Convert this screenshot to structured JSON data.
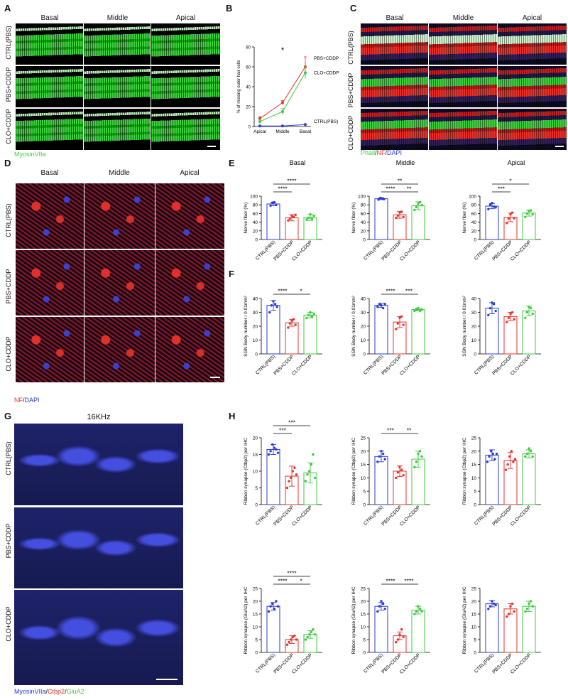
{
  "panels": {
    "A": {
      "letter": "A",
      "columns": [
        "Basal",
        "Middle",
        "Apical"
      ],
      "rows": [
        "CTRL(PBS)",
        "PBS+CDDP",
        "CLO+CDDP"
      ],
      "stain": "MyosinVIIa",
      "colors": {
        "stain": "#3fd13f"
      }
    },
    "B": {
      "letter": "B"
    },
    "C": {
      "letter": "C",
      "columns": [
        "Basal",
        "Middle",
        "Apical"
      ],
      "rows": [
        "CTRL(PBS)",
        "PBS+CDDP",
        "CLO+CDDP"
      ],
      "stain_parts": [
        "Phail",
        "/",
        "NF",
        "/",
        "DAPI"
      ],
      "colors": {
        "phail": "#3fd13f",
        "nf": "#e8322a",
        "dapi": "#2a3bd6"
      }
    },
    "D": {
      "letter": "D",
      "columns": [
        "Basal",
        "Middle",
        "Apical"
      ],
      "rows": [
        "CTRL(PBS)",
        "PBS+CDDP",
        "CLO+CDDP"
      ],
      "stain_parts": [
        "NF",
        "/",
        "DAPI"
      ]
    },
    "E": {
      "letter": "E"
    },
    "F": {
      "letter": "F"
    },
    "G": {
      "letter": "G",
      "title": "16KHz",
      "rows": [
        "CTRL(PBS)",
        "PBS+CDDP",
        "CLO+CDDP"
      ],
      "stain_parts": [
        "MyosinVIIa",
        "/",
        "Ctbp2",
        "/",
        "GluA2"
      ],
      "colors": {
        "myo": "#2a3bd6",
        "ctbp2": "#e8322a",
        "glua2": "#3fd13f"
      }
    },
    "H": {
      "letter": "H"
    }
  },
  "chart_data": [
    {
      "id": "B",
      "type": "line",
      "title": "",
      "xlabel": "",
      "ylabel": "% of missing outer hair cells",
      "categories": [
        "Apical",
        "Middle",
        "Basal"
      ],
      "ylim": [
        0,
        80
      ],
      "yticks": [
        0,
        20,
        40,
        60,
        80
      ],
      "series": [
        {
          "name": "PBS+CDDP",
          "color": "#e8322a",
          "values": [
            8,
            24,
            60
          ],
          "errors": [
            2,
            2,
            10
          ]
        },
        {
          "name": "CLO+CDDP",
          "color": "#3fc93f",
          "values": [
            5,
            15,
            54
          ],
          "errors": [
            2,
            3,
            6
          ]
        },
        {
          "name": "CTRL(PBS)",
          "color": "#2a3bd6",
          "values": [
            0.5,
            0.5,
            2
          ],
          "errors": [
            0.3,
            0.3,
            0.5
          ]
        }
      ],
      "annotations": [
        {
          "text": "*",
          "x": "Middle"
        }
      ]
    },
    {
      "id": "E-basal",
      "type": "bar",
      "title": "Basal",
      "ylabel": "Nerve fiber (%)",
      "categories": [
        "CTRL(PBS)",
        "PBS+CDDP",
        "CLO+CDDP"
      ],
      "ylim": [
        0,
        100
      ],
      "yticks": [
        0,
        20,
        40,
        60,
        80,
        100
      ],
      "values": [
        82,
        50,
        51
      ],
      "errors": [
        4,
        7,
        7
      ],
      "points": [
        [
          78,
          85,
          86,
          80
        ],
        [
          44,
          48,
          55,
          52,
          57
        ],
        [
          46,
          50,
          58,
          48,
          55
        ]
      ],
      "brackets": [
        {
          "from": 0,
          "to": 1,
          "text": "****",
          "level": 0
        },
        {
          "from": 0,
          "to": 2,
          "text": "****",
          "level": 1
        }
      ]
    },
    {
      "id": "E-middle",
      "type": "bar",
      "title": "Middle",
      "ylabel": "Nerve fiber (%)",
      "categories": [
        "CTRL(PBS)",
        "PBS+CDDP",
        "CLO+CDDP"
      ],
      "ylim": [
        0,
        100
      ],
      "yticks": [
        0,
        20,
        40,
        60,
        80,
        100
      ],
      "values": [
        94,
        57,
        78
      ],
      "errors": [
        2,
        8,
        9
      ],
      "points": [
        [
          92,
          96,
          95,
          93
        ],
        [
          50,
          55,
          62,
          64,
          52
        ],
        [
          68,
          75,
          83,
          86,
          79
        ]
      ],
      "brackets": [
        {
          "from": 0,
          "to": 1,
          "text": "****",
          "level": 0
        },
        {
          "from": 1,
          "to": 2,
          "text": "**",
          "level": 0
        },
        {
          "from": 0,
          "to": 2,
          "text": "**",
          "level": 1
        }
      ]
    },
    {
      "id": "E-apical",
      "type": "bar",
      "title": "Apical",
      "ylabel": "Nerve fiber (%)",
      "categories": [
        "CTRL(PBS)",
        "PBS+CDDP",
        "CLO+CDDP"
      ],
      "ylim": [
        0,
        100
      ],
      "yticks": [
        0,
        20,
        40,
        60,
        80,
        100
      ],
      "values": [
        77,
        51,
        61
      ],
      "errors": [
        6,
        10,
        7
      ],
      "points": [
        [
          70,
          80,
          84,
          76,
          74
        ],
        [
          38,
          48,
          58,
          62,
          49
        ],
        [
          52,
          60,
          66,
          67,
          58
        ]
      ],
      "brackets": [
        {
          "from": 0,
          "to": 1,
          "text": "***",
          "level": 0
        },
        {
          "from": 0,
          "to": 2,
          "text": "*",
          "level": 1
        }
      ]
    },
    {
      "id": "F-basal",
      "type": "bar",
      "ylabel": "SGN Body number / 0.01mm²",
      "categories": [
        "CTRL(PBS)",
        "PBS+CDDP",
        "CLO+CDDP"
      ],
      "ylim": [
        0,
        40
      ],
      "yticks": [
        0,
        10,
        20,
        30,
        40
      ],
      "values": [
        35,
        22.5,
        28
      ],
      "errors": [
        3.5,
        2.5,
        2
      ],
      "points": [
        [
          30,
          35,
          38,
          36,
          34
        ],
        [
          19,
          22,
          24,
          25,
          21
        ],
        [
          26,
          28,
          30,
          27,
          29
        ]
      ],
      "brackets": [
        {
          "from": 0,
          "to": 1,
          "text": "****",
          "level": 0
        },
        {
          "from": 1,
          "to": 2,
          "text": "*",
          "level": 0
        }
      ]
    },
    {
      "id": "F-middle",
      "type": "bar",
      "ylabel": "SGN Body number / 0.01mm²",
      "categories": [
        "CTRL(PBS)",
        "PBS+CDDP",
        "CLO+CDDP"
      ],
      "ylim": [
        0,
        40
      ],
      "yticks": [
        0,
        10,
        20,
        30,
        40
      ],
      "values": [
        35,
        23,
        32
      ],
      "errors": [
        1.5,
        4,
        1
      ],
      "points": [
        [
          34,
          36,
          35,
          33,
          36
        ],
        [
          18,
          22,
          26,
          27,
          21
        ],
        [
          31,
          32,
          33,
          31,
          32
        ]
      ],
      "brackets": [
        {
          "from": 0,
          "to": 1,
          "text": "****",
          "level": 0
        },
        {
          "from": 1,
          "to": 2,
          "text": "***",
          "level": 0
        }
      ]
    },
    {
      "id": "F-apical",
      "type": "bar",
      "ylabel": "SGN Body number / 0.01mm²",
      "categories": [
        "CTRL(PBS)",
        "PBS+CDDP",
        "CLO+CDDP"
      ],
      "ylim": [
        0,
        40
      ],
      "yticks": [
        0,
        10,
        20,
        30,
        40
      ],
      "values": [
        33,
        27,
        31
      ],
      "errors": [
        4,
        3,
        3.5
      ],
      "points": [
        [
          28,
          33,
          37,
          36,
          31
        ],
        [
          23,
          26,
          29,
          30,
          25
        ],
        [
          26,
          30,
          34,
          33,
          29
        ]
      ],
      "brackets": []
    },
    {
      "id": "H-ctbp2-1",
      "type": "bar",
      "ylabel": "Ribbon synapse (Ctbp2) per IHC",
      "categories": [
        "CTRL(PBS)",
        "PBS+CDDP",
        "CLO+CDDP"
      ],
      "ylim": [
        0,
        20
      ],
      "yticks": [
        0,
        5,
        10,
        15,
        20
      ],
      "values": [
        16.5,
        8.5,
        9.5
      ],
      "errors": [
        1.5,
        3,
        3
      ],
      "points": [
        [
          15,
          16,
          18,
          17,
          16.5,
          15.5
        ],
        [
          5,
          7,
          8,
          10,
          11,
          9
        ],
        [
          7,
          9,
          10,
          12,
          15,
          8
        ]
      ],
      "brackets": [
        {
          "from": 0,
          "to": 1,
          "text": "***",
          "level": 0
        },
        {
          "from": 0,
          "to": 2,
          "text": "***",
          "level": 1
        }
      ]
    },
    {
      "id": "H-ctbp2-2",
      "type": "bar",
      "ylabel": "Ribbon synapse (Ctbp2) per IHC",
      "categories": [
        "CTRL(PBS)",
        "PBS+CDDP",
        "CLO+CDDP"
      ],
      "ylim": [
        0,
        25
      ],
      "yticks": [
        0,
        5,
        10,
        15,
        20,
        25
      ],
      "values": [
        18,
        12.5,
        17
      ],
      "errors": [
        2,
        2,
        3
      ],
      "points": [
        [
          16,
          18,
          20,
          19,
          17
        ],
        [
          10,
          12,
          14,
          13,
          11
        ],
        [
          14,
          16,
          19,
          20,
          18
        ]
      ],
      "brackets": [
        {
          "from": 0,
          "to": 1,
          "text": "***",
          "level": 0
        },
        {
          "from": 1,
          "to": 2,
          "text": "**",
          "level": 0
        }
      ]
    },
    {
      "id": "H-ctbp2-3",
      "type": "bar",
      "ylabel": "Ribbon synapse (Ctbp2) per IHC",
      "categories": [
        "CTRL(PBS)",
        "PBS+CDDP",
        "CLO+CDDP"
      ],
      "ylim": [
        0,
        25
      ],
      "yticks": [
        0,
        5,
        10,
        15,
        20,
        25
      ],
      "values": [
        18.5,
        16.5,
        19
      ],
      "errors": [
        2,
        3,
        1.5
      ],
      "points": [
        [
          16,
          18,
          20,
          19,
          17,
          19
        ],
        [
          13,
          15,
          18,
          20,
          16,
          17
        ],
        [
          18,
          19,
          21,
          20,
          18
        ]
      ],
      "brackets": []
    },
    {
      "id": "H-glua2-1",
      "type": "bar",
      "ylabel": "Ribbon synapse (GluA2) per IHC",
      "categories": [
        "CTRL(PBS)",
        "PBS+CDDP",
        "CLO+CDDP"
      ],
      "ylim": [
        0,
        25
      ],
      "yticks": [
        0,
        5,
        10,
        15,
        20,
        25
      ],
      "values": [
        18,
        5,
        7
      ],
      "errors": [
        1.5,
        1.5,
        1.5
      ],
      "points": [
        [
          16,
          18,
          19,
          17,
          20,
          18
        ],
        [
          3,
          4,
          5,
          6,
          6.5,
          5
        ],
        [
          5,
          6,
          7,
          8,
          9,
          7
        ]
      ],
      "brackets": [
        {
          "from": 0,
          "to": 1,
          "text": "****",
          "level": 0
        },
        {
          "from": 1,
          "to": 2,
          "text": "*",
          "level": 0
        },
        {
          "from": 0,
          "to": 2,
          "text": "****",
          "level": 1
        }
      ]
    },
    {
      "id": "H-glua2-2",
      "type": "bar",
      "ylabel": "Ribbon synapse (GluA2) per IHC",
      "categories": [
        "CTRL(PBS)",
        "PBS+CDDP",
        "CLO+CDDP"
      ],
      "ylim": [
        0,
        25
      ],
      "yticks": [
        0,
        5,
        10,
        15,
        20,
        25
      ],
      "values": [
        18,
        6.5,
        16.5
      ],
      "errors": [
        1.5,
        1.5,
        1.5
      ],
      "points": [
        [
          16,
          18,
          20,
          19,
          17
        ],
        [
          4,
          5,
          7,
          9,
          6
        ],
        [
          15,
          16,
          18,
          17,
          16
        ]
      ],
      "brackets": [
        {
          "from": 0,
          "to": 1,
          "text": "****",
          "level": 0
        },
        {
          "from": 1,
          "to": 2,
          "text": "****",
          "level": 0
        }
      ]
    },
    {
      "id": "H-glua2-3",
      "type": "bar",
      "ylabel": "Ribbon synapse (GluA2) per IHC",
      "categories": [
        "CTRL(PBS)",
        "PBS+CDDP",
        "CLO+CDDP"
      ],
      "ylim": [
        0,
        25
      ],
      "yticks": [
        0,
        5,
        10,
        15,
        20,
        25
      ],
      "values": [
        19,
        17,
        18
      ],
      "errors": [
        1.2,
        2,
        2
      ],
      "points": [
        [
          17,
          18,
          20,
          19,
          18.5
        ],
        [
          14,
          15,
          18,
          19,
          16
        ],
        [
          16,
          17,
          19,
          20,
          18
        ]
      ],
      "brackets": []
    }
  ],
  "bar_colors": [
    "#2a3bd6",
    "#e8322a",
    "#3fc93f"
  ]
}
